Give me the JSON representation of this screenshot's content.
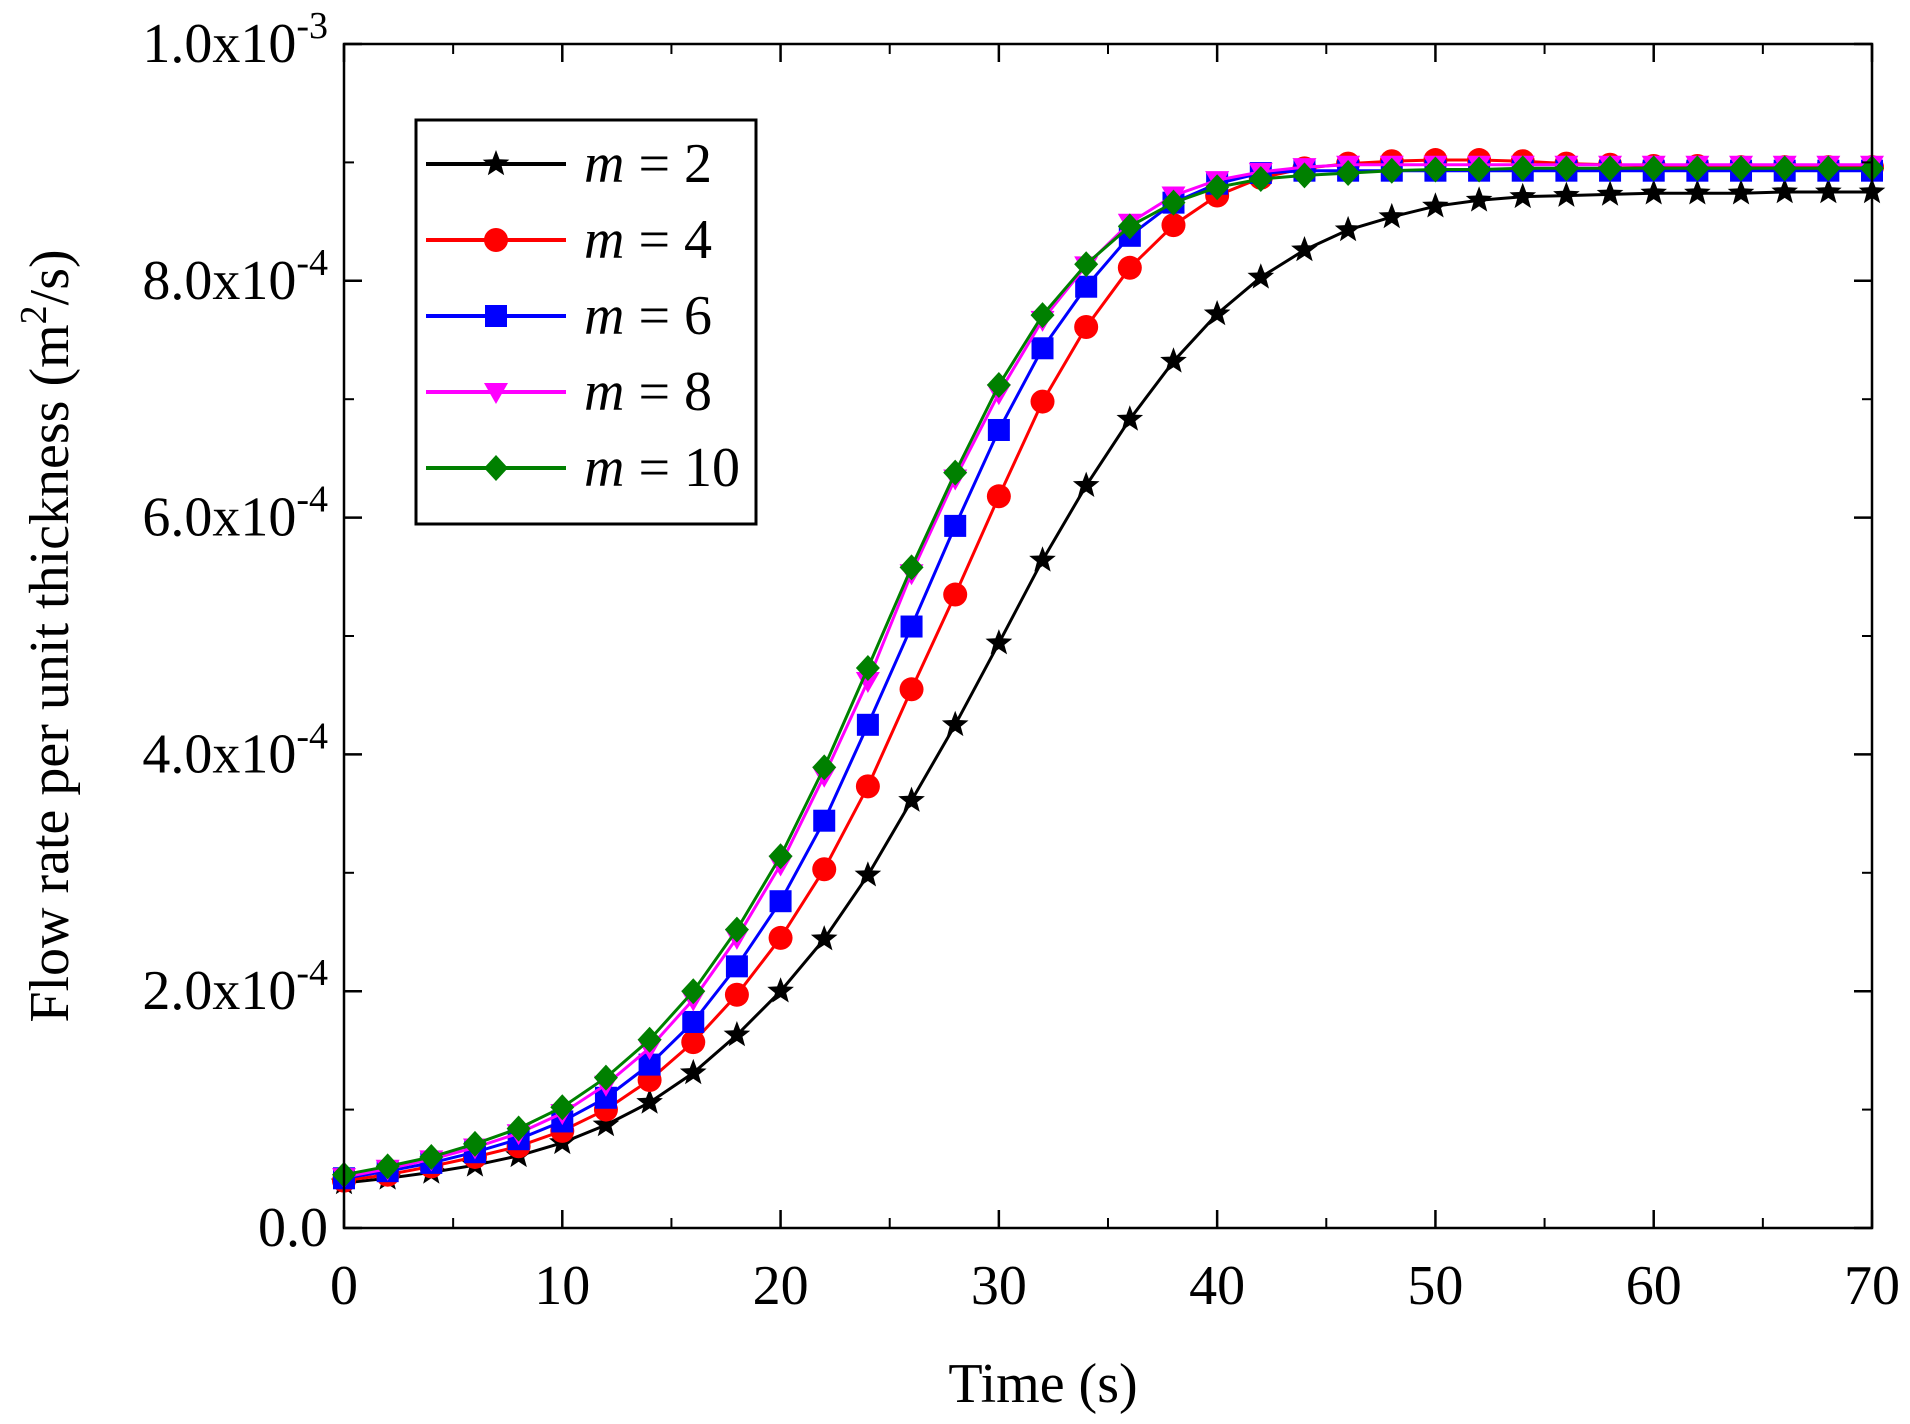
{
  "chart_data": {
    "type": "line",
    "title": "",
    "xlabel": "Time (s)",
    "ylabel": "Flow rate per unit thickness (m²/s)",
    "xlim": [
      0,
      70
    ],
    "ylim": [
      0,
      0.001
    ],
    "grid": false,
    "legend_position": "top-left",
    "x_ticks": [
      {
        "value": 0,
        "label": "0"
      },
      {
        "value": 10,
        "label": "10"
      },
      {
        "value": 20,
        "label": "20"
      },
      {
        "value": 30,
        "label": "30"
      },
      {
        "value": 40,
        "label": "40"
      },
      {
        "value": 50,
        "label": "50"
      },
      {
        "value": 60,
        "label": "60"
      },
      {
        "value": 70,
        "label": "70"
      }
    ],
    "y_ticks": [
      {
        "value": 0,
        "mantissa": "0.0",
        "exponent": ""
      },
      {
        "value": 0.0002,
        "mantissa": "2.0x10",
        "exponent": "-4"
      },
      {
        "value": 0.0004,
        "mantissa": "4.0x10",
        "exponent": "-4"
      },
      {
        "value": 0.0006,
        "mantissa": "6.0x10",
        "exponent": "-4"
      },
      {
        "value": 0.0008,
        "mantissa": "8.0x10",
        "exponent": "-4"
      },
      {
        "value": 0.001,
        "mantissa": "1.0x10",
        "exponent": "-3"
      }
    ],
    "x": [
      0,
      2,
      4,
      6,
      8,
      10,
      12,
      14,
      16,
      18,
      20,
      22,
      24,
      26,
      28,
      30,
      32,
      34,
      36,
      38,
      40,
      42,
      44,
      46,
      48,
      50,
      52,
      54,
      56,
      58,
      60,
      62,
      64,
      66,
      68,
      70
    ],
    "series": [
      {
        "name": "m = 2",
        "m_value": "2",
        "color": "#000000",
        "marker": "star",
        "values": [
          3.8e-05,
          4.2e-05,
          4.7e-05,
          5.3e-05,
          6.1e-05,
          7.2e-05,
          8.7e-05,
          0.000106,
          0.000131,
          0.000163,
          0.0002,
          0.000244,
          0.000298,
          0.000361,
          0.000425,
          0.000494,
          0.000564,
          0.000627,
          0.000683,
          0.000732,
          0.000772,
          0.000803,
          0.000826,
          0.000843,
          0.000854,
          0.000863,
          0.000868,
          0.000871,
          0.000872,
          0.000873,
          0.000874,
          0.000874,
          0.000874,
          0.000875,
          0.000875,
          0.000875
        ]
      },
      {
        "name": "m = 4",
        "m_value": "4",
        "color": "#ff0000",
        "marker": "circle",
        "values": [
          4e-05,
          4.5e-05,
          5.2e-05,
          6e-05,
          6.9e-05,
          8.2e-05,
          0.0001,
          0.000125,
          0.000157,
          0.000197,
          0.000245,
          0.000303,
          0.000373,
          0.000455,
          0.000535,
          0.000618,
          0.000698,
          0.000761,
          0.000811,
          0.000847,
          0.000872,
          0.000887,
          0.000895,
          0.000899,
          0.000901,
          0.000902,
          0.000902,
          0.000901,
          0.000899,
          0.000898,
          0.000897,
          0.000897,
          0.000896,
          0.000896,
          0.000896,
          0.000896
        ]
      },
      {
        "name": "m = 6",
        "m_value": "6",
        "color": "#0000ff",
        "marker": "square",
        "values": [
          4.2e-05,
          4.8e-05,
          5.5e-05,
          6.4e-05,
          7.5e-05,
          9e-05,
          0.00011,
          0.000138,
          0.000174,
          0.000221,
          0.000276,
          0.000344,
          0.000425,
          0.000508,
          0.000593,
          0.000674,
          0.000743,
          0.000795,
          0.000838,
          0.000866,
          0.000882,
          0.000891,
          0.000893,
          0.000893,
          0.000893,
          0.000893,
          0.000893,
          0.000893,
          0.000893,
          0.000893,
          0.000893,
          0.000893,
          0.000893,
          0.000893,
          0.000893,
          0.000893
        ]
      },
      {
        "name": "m = 8",
        "m_value": "8",
        "color": "#ff00ff",
        "marker": "triangle-down",
        "values": [
          4.3e-05,
          5e-05,
          5.8e-05,
          6.8e-05,
          8e-05,
          9.7e-05,
          0.000121,
          0.000152,
          0.000193,
          0.000245,
          0.000307,
          0.000382,
          0.000462,
          0.000553,
          0.000633,
          0.000705,
          0.000767,
          0.000813,
          0.000849,
          0.000872,
          0.000885,
          0.000892,
          0.000896,
          0.000898,
          0.000898,
          0.000898,
          0.000898,
          0.000898,
          0.000898,
          0.000898,
          0.000898,
          0.000898,
          0.000898,
          0.000898,
          0.000898,
          0.000898
        ]
      },
      {
        "name": "m = 10",
        "m_value": "10",
        "color": "#008000",
        "marker": "diamond",
        "values": [
          4.5e-05,
          5.2e-05,
          6e-05,
          7.1e-05,
          8.4e-05,
          0.000102,
          0.000127,
          0.000159,
          0.0002,
          0.000252,
          0.000314,
          0.000389,
          0.000473,
          0.000558,
          0.000638,
          0.000712,
          0.000771,
          0.000814,
          0.000846,
          0.000866,
          0.000879,
          0.000886,
          0.000889,
          0.000891,
          0.000893,
          0.000894,
          0.000894,
          0.000895,
          0.000895,
          0.000895,
          0.000895,
          0.000895,
          0.000895,
          0.000895,
          0.000895,
          0.000895
        ]
      }
    ]
  }
}
